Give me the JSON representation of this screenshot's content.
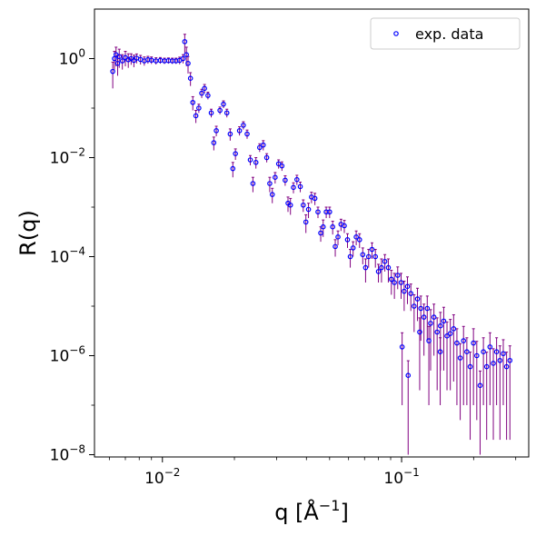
{
  "chart_data": {
    "type": "scatter",
    "xscale": "log",
    "yscale": "log",
    "xlim": [
      0.0052,
      0.34
    ],
    "ylim": [
      9e-09,
      10
    ],
    "xlabel": {
      "base": "q [Å",
      "sup": "−1",
      "tail": "]"
    },
    "ylabel": "R(q)",
    "x_ticks": [
      {
        "base": "10",
        "exp": "−2",
        "value": 0.01
      },
      {
        "base": "10",
        "exp": "−1",
        "value": 0.1
      }
    ],
    "y_ticks": [
      {
        "base": "10",
        "exp": "0",
        "value": 1
      },
      {
        "base": "10",
        "exp": "−2",
        "value": 0.01
      },
      {
        "base": "10",
        "exp": "−4",
        "value": 0.0001
      },
      {
        "base": "10",
        "exp": "−6",
        "value": 1e-06
      },
      {
        "base": "10",
        "exp": "−8",
        "value": 1e-08
      }
    ],
    "legend": {
      "position": "top-right",
      "entries": [
        "exp. data"
      ]
    },
    "grid": false,
    "series": [
      {
        "name": "exp. data",
        "marker": "open-circle",
        "marker_color": "#0000ff",
        "errorbar_color": "#800080",
        "points": [
          [
            0.0062,
            0.55,
            0.3
          ],
          [
            0.0063,
            1.0,
            0.4
          ],
          [
            0.0064,
            1.2,
            0.5
          ],
          [
            0.0065,
            0.8,
            0.35
          ],
          [
            0.0066,
            1.1,
            0.45
          ],
          [
            0.0068,
            0.9,
            0.3
          ],
          [
            0.007,
            1.05,
            0.35
          ],
          [
            0.0072,
            0.95,
            0.3
          ],
          [
            0.0074,
            1.0,
            0.25
          ],
          [
            0.0076,
            0.92,
            0.25
          ],
          [
            0.0078,
            1.02,
            0.22
          ],
          [
            0.0081,
            0.96,
            0.2
          ],
          [
            0.0084,
            0.9,
            0.18
          ],
          [
            0.0087,
            0.95,
            0.16
          ],
          [
            0.009,
            0.93,
            0.15
          ],
          [
            0.0094,
            0.9,
            0.14
          ],
          [
            0.0098,
            0.92,
            0.13
          ],
          [
            0.0102,
            0.9,
            0.12
          ],
          [
            0.0106,
            0.91,
            0.12
          ],
          [
            0.011,
            0.9,
            0.12
          ],
          [
            0.0114,
            0.9,
            0.12
          ],
          [
            0.0118,
            0.92,
            0.15
          ],
          [
            0.0122,
            1.0,
            0.2
          ],
          [
            0.0124,
            2.2,
            0.9
          ],
          [
            0.0126,
            1.2,
            0.5
          ],
          [
            0.0128,
            0.8,
            0.3
          ],
          [
            0.0131,
            0.4,
            0.12
          ],
          [
            0.0134,
            0.13,
            0.04
          ],
          [
            0.0138,
            0.07,
            0.02
          ],
          [
            0.0142,
            0.1,
            0.02
          ],
          [
            0.0146,
            0.2,
            0.04
          ],
          [
            0.015,
            0.25,
            0.05
          ],
          [
            0.0155,
            0.18,
            0.03
          ],
          [
            0.016,
            0.08,
            0.015
          ],
          [
            0.0164,
            0.02,
            0.006
          ],
          [
            0.0168,
            0.035,
            0.008
          ],
          [
            0.0174,
            0.09,
            0.015
          ],
          [
            0.018,
            0.12,
            0.02
          ],
          [
            0.0186,
            0.08,
            0.015
          ],
          [
            0.0192,
            0.03,
            0.008
          ],
          [
            0.0197,
            0.006,
            0.002
          ],
          [
            0.0202,
            0.012,
            0.003
          ],
          [
            0.021,
            0.035,
            0.007
          ],
          [
            0.0218,
            0.045,
            0.008
          ],
          [
            0.0226,
            0.03,
            0.006
          ],
          [
            0.0233,
            0.009,
            0.002
          ],
          [
            0.0239,
            0.003,
            0.001
          ],
          [
            0.0246,
            0.008,
            0.002
          ],
          [
            0.0255,
            0.016,
            0.003
          ],
          [
            0.0264,
            0.018,
            0.004
          ],
          [
            0.0273,
            0.01,
            0.002
          ],
          [
            0.0281,
            0.003,
            0.001
          ],
          [
            0.0288,
            0.0018,
            0.0006
          ],
          [
            0.0296,
            0.004,
            0.001
          ],
          [
            0.0306,
            0.0075,
            0.0015
          ],
          [
            0.0316,
            0.0068,
            0.0014
          ],
          [
            0.0326,
            0.0035,
            0.0008
          ],
          [
            0.0335,
            0.0012,
            0.0004
          ],
          [
            0.0343,
            0.0011,
            0.0004
          ],
          [
            0.0353,
            0.0025,
            0.0006
          ],
          [
            0.0365,
            0.0036,
            0.0008
          ],
          [
            0.0377,
            0.0026,
            0.0006
          ],
          [
            0.0388,
            0.0011,
            0.0003
          ],
          [
            0.0398,
            0.0005,
            0.0002
          ],
          [
            0.0408,
            0.0009,
            0.0003
          ],
          [
            0.042,
            0.0016,
            0.0004
          ],
          [
            0.0434,
            0.0015,
            0.0004
          ],
          [
            0.0447,
            0.0008,
            0.0002
          ],
          [
            0.0459,
            0.0003,
            0.0001
          ],
          [
            0.047,
            0.0004,
            0.00015
          ],
          [
            0.0484,
            0.0008,
            0.0002
          ],
          [
            0.05,
            0.0008,
            0.0002
          ],
          [
            0.0515,
            0.0004,
            0.00012
          ],
          [
            0.0528,
            0.00016,
            6e-05
          ],
          [
            0.0542,
            0.00025,
            8e-05
          ],
          [
            0.0558,
            0.00045,
            0.00012
          ],
          [
            0.0576,
            0.00042,
            0.00012
          ],
          [
            0.0594,
            0.00022,
            7e-05
          ],
          [
            0.061,
            0.0001,
            4e-05
          ],
          [
            0.0627,
            0.00015,
            5e-05
          ],
          [
            0.0646,
            0.00025,
            8e-05
          ],
          [
            0.0667,
            0.00022,
            7e-05
          ],
          [
            0.0688,
            0.00011,
            4e-05
          ],
          [
            0.0707,
            6e-05,
            3e-05
          ],
          [
            0.0728,
            0.0001,
            4e-05
          ],
          [
            0.0752,
            0.00014,
            5e-05
          ],
          [
            0.0777,
            0.0001,
            4e-05
          ],
          [
            0.08,
            5e-05,
            2e-05
          ],
          [
            0.0824,
            6e-05,
            3e-05
          ],
          [
            0.0851,
            8e-05,
            3e-05
          ],
          [
            0.088,
            6e-05,
            3e-05
          ],
          [
            0.0906,
            3.5e-05,
            1.8e-05
          ],
          [
            0.0933,
            3e-05,
            1.6e-05
          ],
          [
            0.0963,
            4.2e-05,
            2e-05
          ],
          [
            0.0995,
            3e-05,
            1.6e-05
          ],
          [
            0.1005,
            1.5e-06,
            1.4e-06
          ],
          [
            0.1025,
            2e-05,
            1.2e-05
          ],
          [
            0.1058,
            2.5e-05,
            1.4e-05
          ],
          [
            0.1065,
            4e-07,
            3.9e-07
          ],
          [
            0.1093,
            1.8e-05,
            1e-05
          ],
          [
            0.1128,
            1e-05,
            7e-06
          ],
          [
            0.1165,
            1.4e-05,
            9e-06
          ],
          [
            0.119,
            3e-06,
            2.8e-06
          ],
          [
            0.1203,
            9e-06,
            7e-06
          ],
          [
            0.124,
            6e-06,
            5e-06
          ],
          [
            0.128,
            9e-06,
            7e-06
          ],
          [
            0.13,
            2e-06,
            1.9e-06
          ],
          [
            0.1322,
            4.5e-06,
            4e-06
          ],
          [
            0.1365,
            6e-06,
            5e-06
          ],
          [
            0.1408,
            3e-06,
            2.8e-06
          ],
          [
            0.145,
            1.2e-06,
            1.1e-06
          ],
          [
            0.1453,
            4e-06,
            3.5e-06
          ],
          [
            0.15,
            5e-06,
            4.5e-06
          ],
          [
            0.1548,
            2.5e-06,
            2.3e-06
          ],
          [
            0.1598,
            2.8e-06,
            2.6e-06
          ],
          [
            0.165,
            3.5e-06,
            3.2e-06
          ],
          [
            0.1703,
            1.8e-06,
            1.7e-06
          ],
          [
            0.1758,
            9e-07,
            8.5e-07
          ],
          [
            0.1815,
            2e-06,
            1.9e-06
          ],
          [
            0.1874,
            1.2e-06,
            1.1e-06
          ],
          [
            0.1935,
            6e-07,
            5.8e-07
          ],
          [
            0.1997,
            1.8e-06,
            1.7e-06
          ],
          [
            0.2062,
            1e-06,
            9.5e-07
          ],
          [
            0.2129,
            2.5e-07,
            2.4e-07
          ],
          [
            0.2198,
            1.2e-06,
            1.1e-06
          ],
          [
            0.2268,
            6e-07,
            5.8e-07
          ],
          [
            0.2341,
            1.5e-06,
            1.4e-06
          ],
          [
            0.2418,
            7e-07,
            6.8e-07
          ],
          [
            0.2495,
            1.2e-06,
            1.1e-06
          ],
          [
            0.2577,
            8e-07,
            7.8e-07
          ],
          [
            0.2661,
            1.1e-06,
            1e-06
          ],
          [
            0.2747,
            6e-07,
            5.8e-07
          ],
          [
            0.2836,
            8e-07,
            7.8e-07
          ]
        ]
      }
    ]
  }
}
